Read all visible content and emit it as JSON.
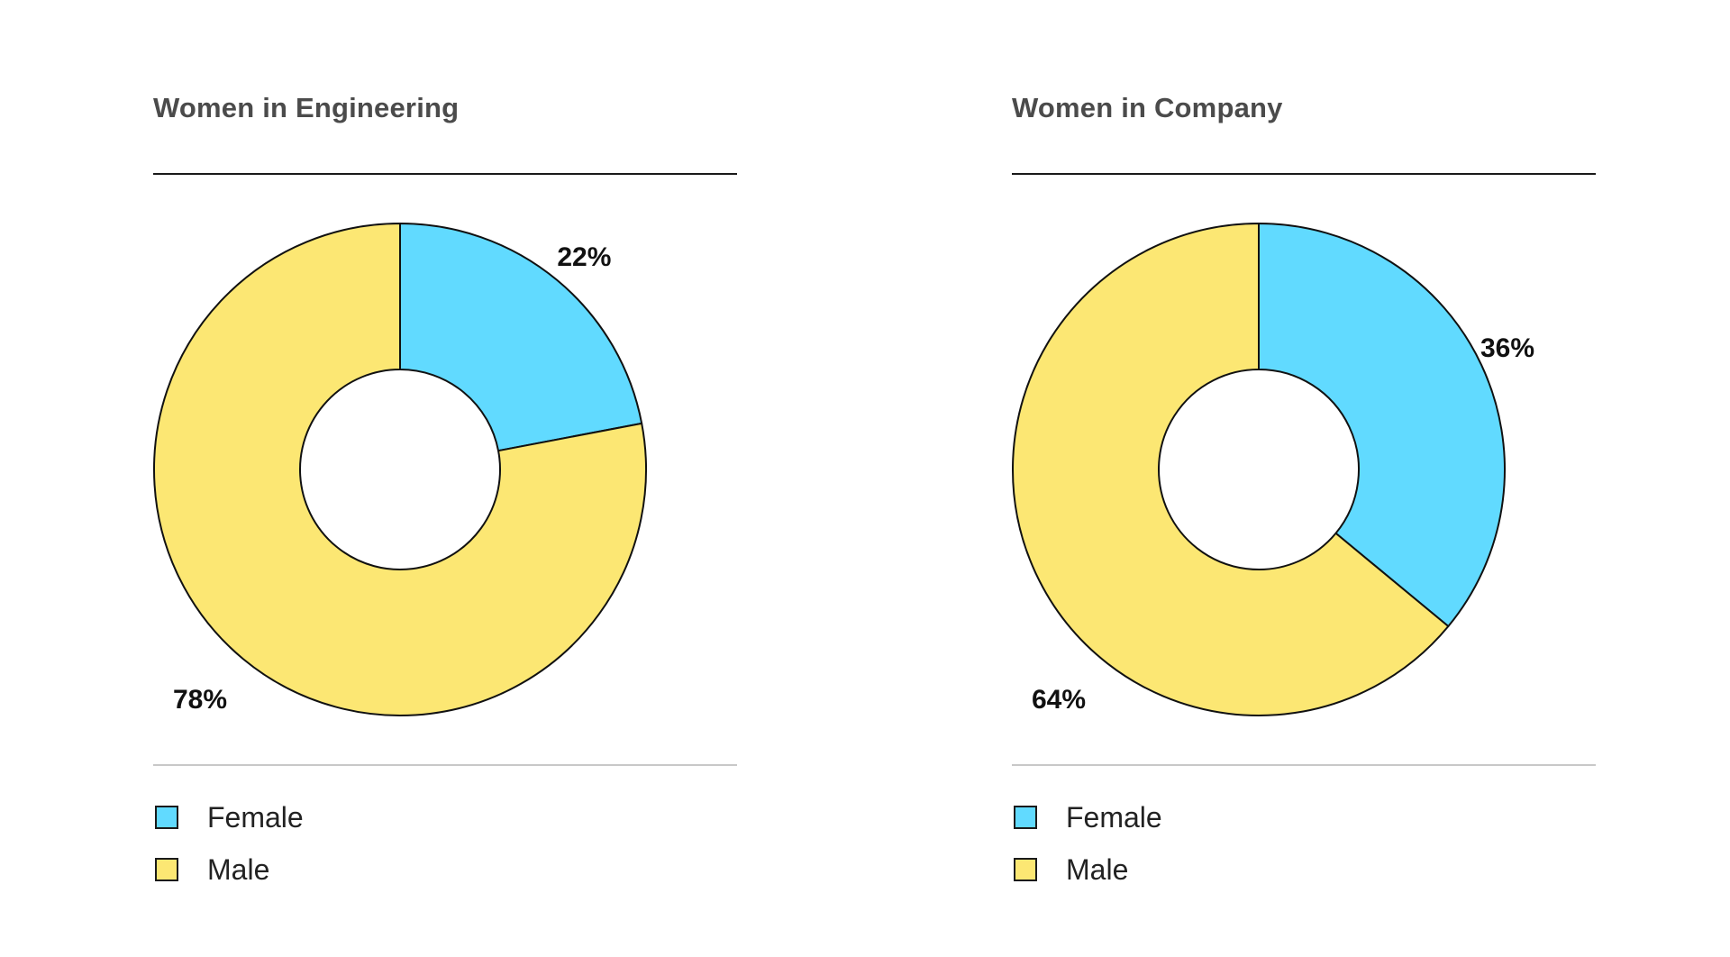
{
  "colors": {
    "female": "#61daff",
    "male": "#fce773",
    "stroke": "#111111"
  },
  "chart_data": [
    {
      "type": "pie",
      "variant": "donut",
      "title": "Women in Engineering",
      "categories": [
        "Female",
        "Male"
      ],
      "values": [
        22,
        78
      ],
      "labels": [
        "22%",
        "78%"
      ],
      "legend": [
        {
          "label": "Female",
          "color": "#61daff"
        },
        {
          "label": "Male",
          "color": "#fce773"
        }
      ],
      "legend_position": "bottom-left"
    },
    {
      "type": "pie",
      "variant": "donut",
      "title": "Women in Company",
      "categories": [
        "Female",
        "Male"
      ],
      "values": [
        36,
        64
      ],
      "labels": [
        "36%",
        "64%"
      ],
      "legend": [
        {
          "label": "Female",
          "color": "#61daff"
        },
        {
          "label": "Male",
          "color": "#fce773"
        }
      ],
      "legend_position": "bottom-left"
    }
  ]
}
